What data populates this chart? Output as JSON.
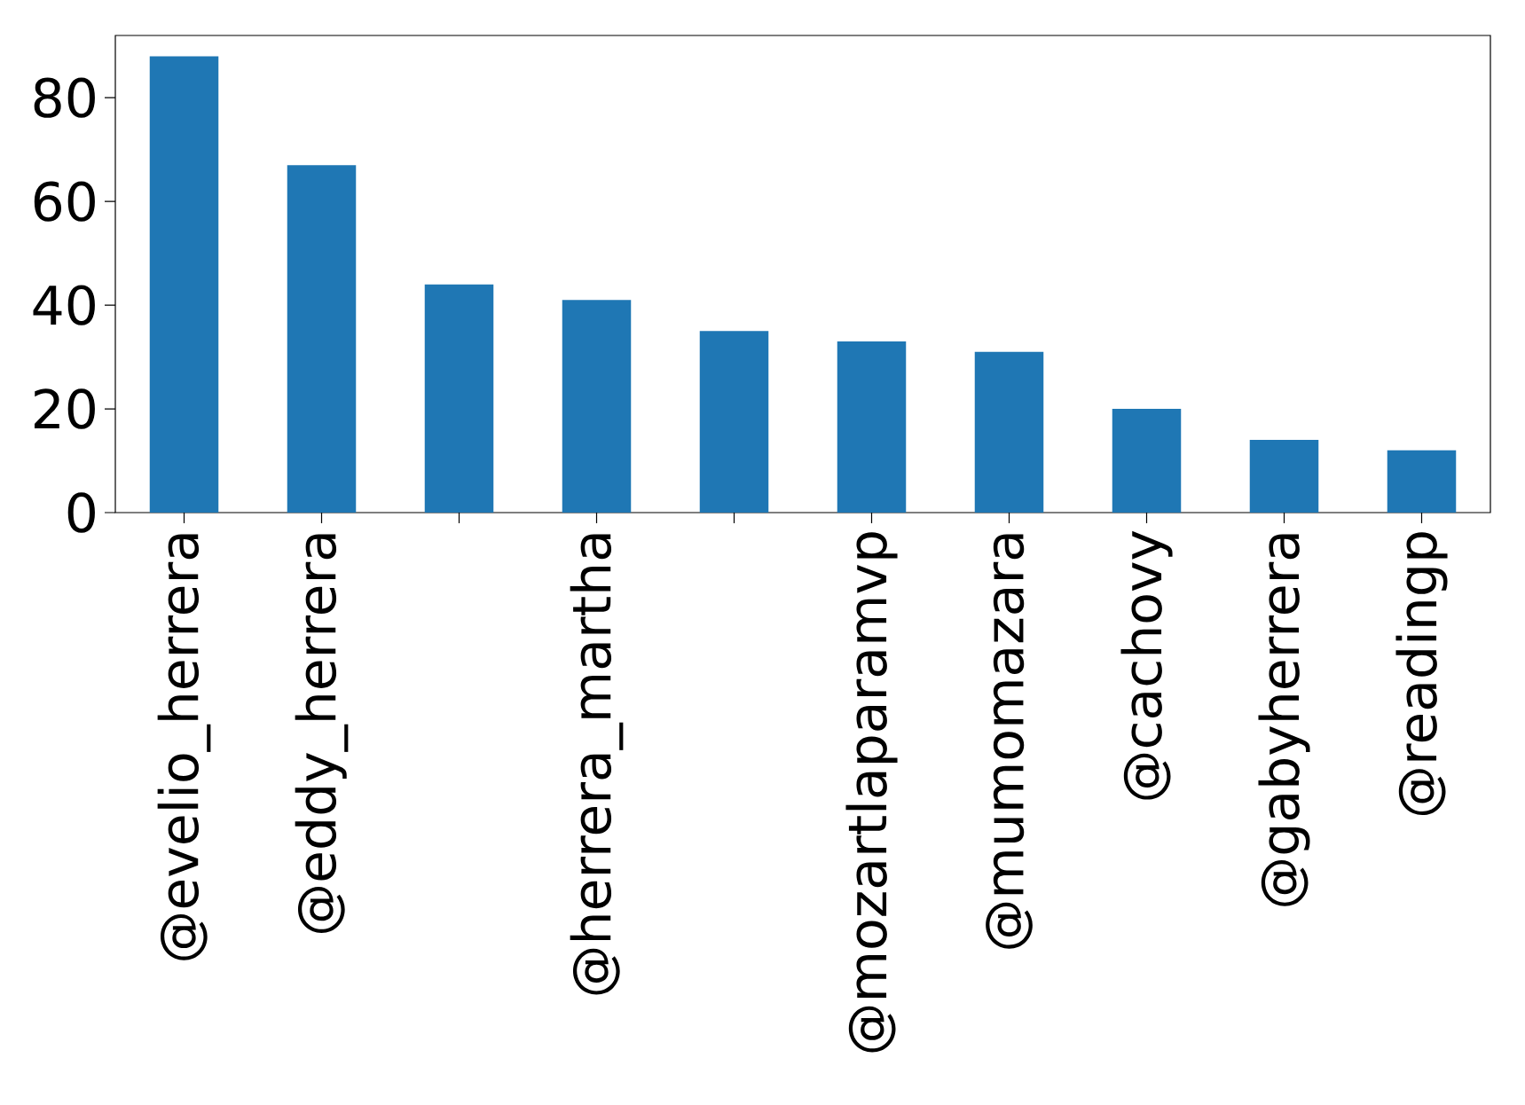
{
  "chart_data": {
    "type": "bar",
    "categories": [
      "@evelio_herrera",
      "@eddy_herrera",
      null,
      "@herrera_martha",
      null,
      "@mozartlaparamvp",
      "@mumomazara",
      "@cachovy",
      "@gabyherrera",
      "@readingp"
    ],
    "values": [
      88,
      67,
      44,
      41,
      35,
      33,
      31,
      20,
      14,
      12
    ],
    "color": "#1f77b4",
    "ylim": [
      0,
      92
    ],
    "yticks": [
      0,
      20,
      40,
      60,
      80
    ]
  }
}
